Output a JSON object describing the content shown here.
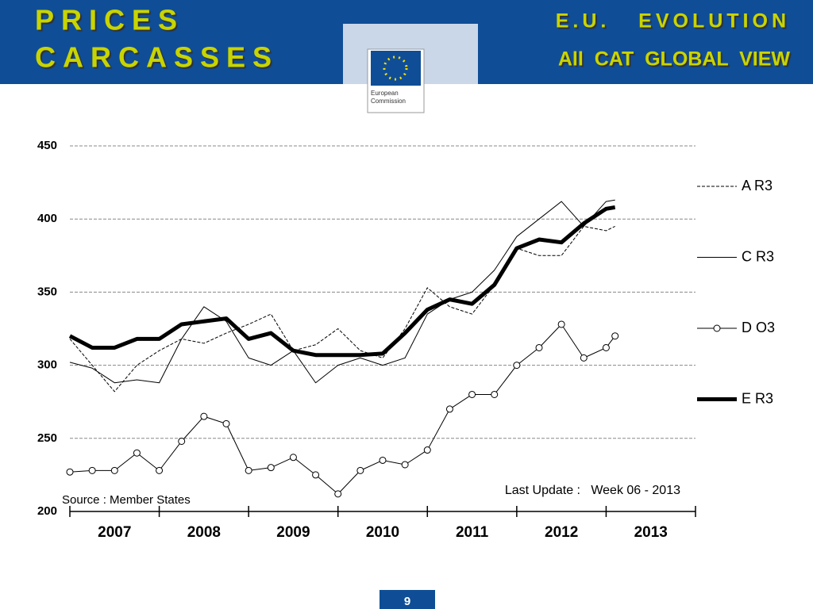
{
  "header": {
    "left_title_1": "PRICES",
    "left_title_2": "CARCASSES",
    "right_title_1": "E.U.   EVOLUTION",
    "right_title_2": "All  CAT  GLOBAL  VIEW",
    "logo_text_1": "European",
    "logo_text_2": "Commission"
  },
  "chart_data": {
    "type": "line",
    "x": [
      2007.0,
      2007.25,
      2007.5,
      2007.75,
      2008.0,
      2008.25,
      2008.5,
      2008.75,
      2009.0,
      2009.25,
      2009.5,
      2009.75,
      2010.0,
      2010.25,
      2010.5,
      2010.75,
      2011.0,
      2011.25,
      2011.5,
      2011.75,
      2012.0,
      2012.25,
      2012.5,
      2012.75,
      2013.0,
      2013.1
    ],
    "series": [
      {
        "name": "A R3",
        "color": "#000000",
        "line_style": "dashed",
        "line_width": 1,
        "values": [
          318,
          300,
          282,
          300,
          310,
          318,
          315,
          322,
          328,
          335,
          310,
          314,
          325,
          310,
          305,
          325,
          353,
          340,
          335,
          355,
          380,
          375,
          375,
          395,
          392,
          395
        ]
      },
      {
        "name": "C R3",
        "color": "#000000",
        "line_style": "solid",
        "line_width": 1,
        "values": [
          302,
          298,
          288,
          290,
          288,
          318,
          340,
          330,
          305,
          300,
          310,
          288,
          300,
          305,
          300,
          305,
          335,
          345,
          350,
          365,
          388,
          400,
          412,
          395,
          412,
          413
        ]
      },
      {
        "name": "D O3",
        "color": "#000000",
        "line_style": "solid",
        "line_width": 1,
        "marker": "circle",
        "values": [
          227,
          228,
          228,
          240,
          228,
          248,
          265,
          260,
          228,
          230,
          237,
          225,
          212,
          228,
          235,
          232,
          242,
          270,
          280,
          280,
          300,
          312,
          328,
          305,
          312,
          320
        ]
      },
      {
        "name": "E R3",
        "color": "#000000",
        "line_style": "solid",
        "line_width": 5,
        "values": [
          320,
          312,
          312,
          318,
          318,
          328,
          330,
          332,
          318,
          322,
          310,
          307,
          307,
          307,
          308,
          322,
          338,
          345,
          342,
          355,
          380,
          386,
          384,
          397,
          407,
          408
        ]
      }
    ],
    "ylim": [
      200,
      450
    ],
    "yticks": [
      200,
      250,
      300,
      350,
      400,
      450
    ],
    "grid": true,
    "xlim": [
      2007,
      2014
    ],
    "xtick_marks": [
      2007,
      2008,
      2009,
      2010,
      2011,
      2012,
      2013,
      2014
    ],
    "xticks": [
      {
        "value": 2007.5,
        "label": "2007"
      },
      {
        "value": 2008.5,
        "label": "2008"
      },
      {
        "value": 2009.5,
        "label": "2009"
      },
      {
        "value": 2010.5,
        "label": "2010"
      },
      {
        "value": 2011.5,
        "label": "2011"
      },
      {
        "value": 2012.5,
        "label": "2012"
      },
      {
        "value": 2013.5,
        "label": "2013"
      }
    ],
    "legend": "right",
    "annotation_update": "Last Update :   Week 06 - 2013",
    "annotation_source": "Source : Member States"
  },
  "footer": {
    "page": "9"
  }
}
